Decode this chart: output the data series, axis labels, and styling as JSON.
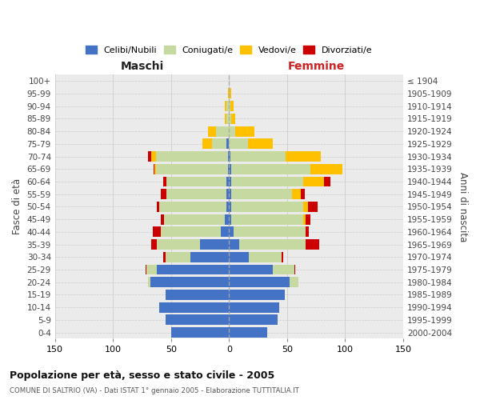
{
  "age_groups": [
    "0-4",
    "5-9",
    "10-14",
    "15-19",
    "20-24",
    "25-29",
    "30-34",
    "35-39",
    "40-44",
    "45-49",
    "50-54",
    "55-59",
    "60-64",
    "65-69",
    "70-74",
    "75-79",
    "80-84",
    "85-89",
    "90-94",
    "95-99",
    "100+"
  ],
  "birth_years": [
    "2000-2004",
    "1995-1999",
    "1990-1994",
    "1985-1989",
    "1980-1984",
    "1975-1979",
    "1970-1974",
    "1965-1969",
    "1960-1964",
    "1955-1959",
    "1950-1954",
    "1945-1949",
    "1940-1944",
    "1935-1939",
    "1930-1934",
    "1925-1929",
    "1920-1924",
    "1915-1919",
    "1910-1914",
    "1905-1909",
    "≤ 1904"
  ],
  "maschi_celibi": [
    50,
    55,
    60,
    55,
    68,
    62,
    33,
    25,
    7,
    4,
    2,
    2,
    2,
    1,
    1,
    2,
    0,
    0,
    0,
    0,
    0
  ],
  "maschi_coniugati": [
    0,
    0,
    0,
    0,
    2,
    9,
    22,
    37,
    52,
    52,
    58,
    52,
    52,
    62,
    62,
    13,
    11,
    2,
    2,
    0,
    0
  ],
  "maschi_vedovi": [
    0,
    0,
    0,
    0,
    0,
    0,
    0,
    0,
    0,
    0,
    0,
    0,
    0,
    1,
    4,
    8,
    7,
    2,
    2,
    1,
    0
  ],
  "maschi_divorziati": [
    0,
    0,
    0,
    0,
    0,
    1,
    2,
    5,
    7,
    3,
    2,
    5,
    3,
    1,
    3,
    0,
    0,
    0,
    0,
    0,
    0
  ],
  "femmine_nubili": [
    33,
    42,
    43,
    48,
    52,
    38,
    17,
    9,
    4,
    2,
    2,
    2,
    2,
    2,
    1,
    0,
    0,
    0,
    0,
    0,
    0
  ],
  "femmine_coniugate": [
    0,
    0,
    0,
    0,
    8,
    18,
    28,
    57,
    62,
    62,
    62,
    52,
    62,
    68,
    48,
    16,
    5,
    2,
    1,
    0,
    0
  ],
  "femmine_vedove": [
    0,
    0,
    0,
    0,
    0,
    0,
    0,
    0,
    0,
    2,
    4,
    8,
    18,
    28,
    30,
    22,
    17,
    3,
    3,
    2,
    0
  ],
  "femmine_divorziate": [
    0,
    0,
    0,
    0,
    0,
    1,
    2,
    12,
    3,
    4,
    8,
    3,
    5,
    0,
    0,
    0,
    0,
    0,
    0,
    0,
    0
  ],
  "color_celibi": "#4472c4",
  "color_coniugati": "#c5d9a0",
  "color_vedovi": "#ffc000",
  "color_divorziati": "#cc0000",
  "title": "Popolazione per età, sesso e stato civile - 2005",
  "subtitle": "COMUNE DI SALTRIO (VA) - Dati ISTAT 1° gennaio 2005 - Elaborazione TUTTITALIA.IT",
  "label_maschi": "Maschi",
  "label_femmine": "Femmine",
  "label_fasce": "Fasce di età",
  "label_anni": "Anni di nascita",
  "legend_labels": [
    "Celibi/Nubili",
    "Coniugati/e",
    "Vedovi/e",
    "Divorziati/e"
  ],
  "xlim": 150,
  "bg_plot": "#ebebeb",
  "bg_fig": "#ffffff"
}
